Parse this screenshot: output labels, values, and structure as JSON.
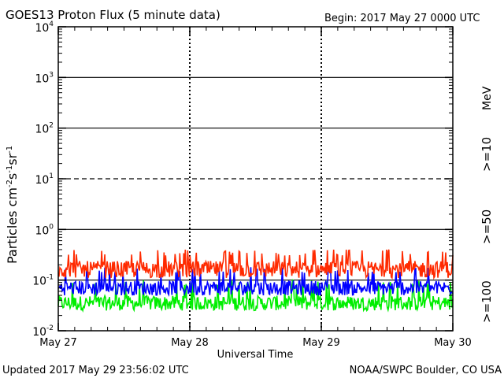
{
  "chart_data": {
    "type": "line",
    "title": "GOES13 Proton Flux (5 minute data)",
    "begin_label": "Begin: 2017 May 27 0000 UTC",
    "xlabel": "Universal Time",
    "ylabel_main": "Particles cm",
    "ylabel_sup1": "-2",
    "ylabel_s": "s",
    "ylabel_sup2": "-1",
    "ylabel_sr": "sr",
    "ylabel_sup3": "-1",
    "yscale": "log",
    "ylim": [
      0.01,
      10000
    ],
    "x_tick_labels": [
      "May 27",
      "May 28",
      "May 29",
      "May 30"
    ],
    "y_ticks": [
      {
        "base": "10",
        "exp": "4"
      },
      {
        "base": "10",
        "exp": "3"
      },
      {
        "base": "10",
        "exp": "2"
      },
      {
        "base": "10",
        "exp": "1"
      },
      {
        "base": "10",
        "exp": "0"
      },
      {
        "base": "10",
        "exp": "-1"
      },
      {
        "base": "10",
        "exp": "-2"
      }
    ],
    "threshold_lines": [
      1000,
      100,
      10,
      1,
      0.1
    ],
    "series": [
      {
        "name": ">=10",
        "color": "#ff2a00",
        "typical_value": 0.17,
        "low": 0.11,
        "high": 0.4
      },
      {
        "name": ">=50",
        "color": "#0000ff",
        "typical_value": 0.07,
        "low": 0.05,
        "high": 0.18
      },
      {
        "name": ">=100",
        "color": "#00ee00",
        "typical_value": 0.035,
        "low": 0.025,
        "high": 0.1
      }
    ],
    "legend_unit": "MeV",
    "footer_left": "Updated 2017 May 29 23:56:02 UTC",
    "footer_right": "NOAA/SWPC Boulder, CO USA"
  }
}
